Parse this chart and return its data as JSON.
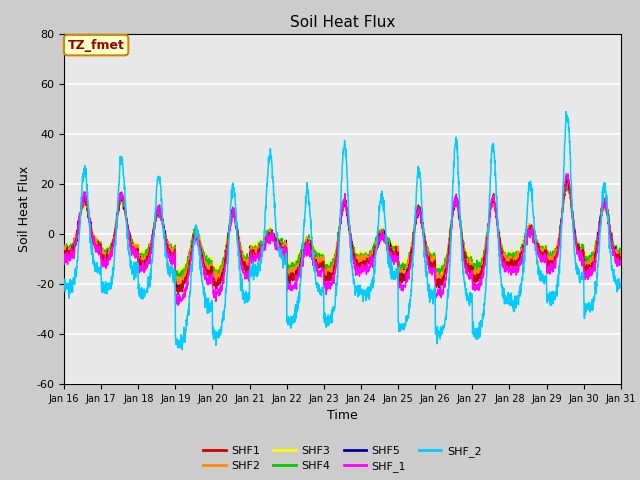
{
  "title": "Soil Heat Flux",
  "ylabel": "Soil Heat Flux",
  "xlabel": "Time",
  "ylim": [
    -60,
    80
  ],
  "xlim_days": [
    16,
    31
  ],
  "background_color": "#cccccc",
  "plot_bg_color": "#e8e8e8",
  "grid_color": "white",
  "series_colors": {
    "SHF1": "#cc0000",
    "SHF2": "#ff8800",
    "SHF3": "#ffff00",
    "SHF4": "#00cc00",
    "SHF5": "#000099",
    "SHF_1": "#ff00ff",
    "SHF_2": "#00ccff"
  },
  "xtick_labels": [
    "Jan 16",
    "Jan 17",
    "Jan 18",
    "Jan 19",
    "Jan 20",
    "Jan 21",
    "Jan 22",
    "Jan 23",
    "Jan 24",
    "Jan 25",
    "Jan 26",
    "Jan 27",
    "Jan 28",
    "Jan 29",
    "Jan 30",
    "Jan 31"
  ],
  "ytick_labels": [
    -60,
    -40,
    -20,
    0,
    20,
    40,
    60,
    80
  ],
  "annotation_text": "TZ_fmet",
  "annotation_bg": "#ffffcc",
  "annotation_edge": "#cc8800",
  "annotation_text_color": "#990000",
  "legend_entries": [
    "SHF1",
    "SHF2",
    "SHF3",
    "SHF4",
    "SHF5",
    "SHF_1",
    "SHF_2"
  ]
}
